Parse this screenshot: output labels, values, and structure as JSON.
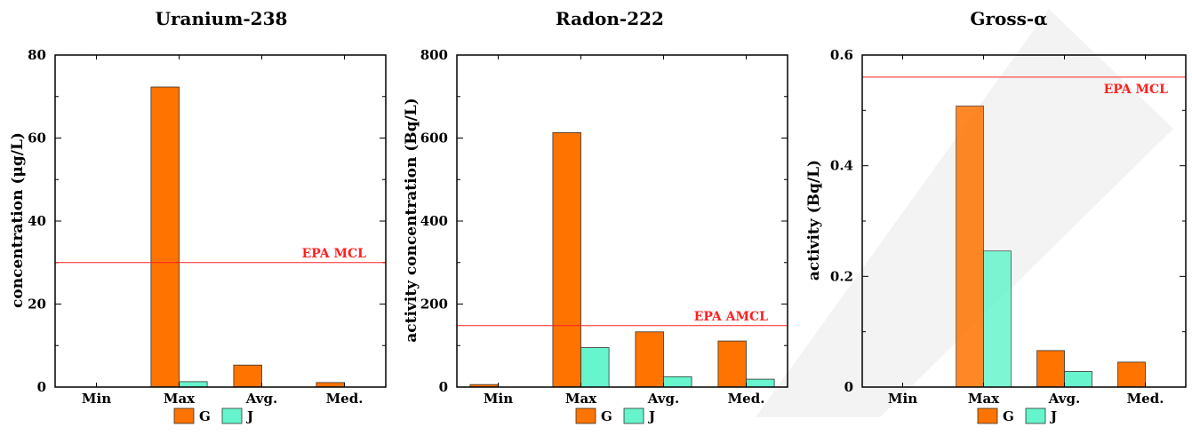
{
  "chart_data": [
    {
      "type": "bar",
      "title": "Uranium-238",
      "ylabel": "concentration (μg/L)",
      "xlabel": "",
      "categories": [
        "Min",
        "Max",
        "Avg.",
        "Med."
      ],
      "series": [
        {
          "name": "G",
          "values": [
            0,
            72.3,
            5.3,
            1.1
          ]
        },
        {
          "name": "J",
          "values": [
            0,
            1.3,
            0,
            0
          ]
        }
      ],
      "ylim": [
        0,
        80
      ],
      "yticks": [
        0,
        20,
        40,
        60,
        80
      ],
      "reference_line": {
        "value": 30,
        "label": "EPA MCL",
        "color": "#ff2020"
      },
      "legend": "bottom-center",
      "grid": false
    },
    {
      "type": "bar",
      "title": "Radon-222",
      "ylabel": "activity concentration (Bq/L)",
      "xlabel": "",
      "categories": [
        "Min",
        "Max",
        "Avg.",
        "Med."
      ],
      "series": [
        {
          "name": "G",
          "values": [
            6,
            613,
            133,
            111
          ]
        },
        {
          "name": "J",
          "values": [
            0,
            95,
            25,
            19
          ]
        }
      ],
      "ylim": [
        0,
        800
      ],
      "yticks": [
        0,
        200,
        400,
        600,
        800
      ],
      "reference_line": {
        "value": 148,
        "label": "EPA AMCL",
        "color": "#ff2020"
      },
      "legend": "bottom-center",
      "grid": false
    },
    {
      "type": "bar",
      "title": "Gross-α",
      "ylabel": "activity (Bq/L)",
      "xlabel": "",
      "categories": [
        "Min",
        "Max",
        "Avg.",
        "Med."
      ],
      "series": [
        {
          "name": "G",
          "values": [
            0,
            0.508,
            0.066,
            0.045
          ]
        },
        {
          "name": "J",
          "values": [
            0,
            0.246,
            0.028,
            0
          ]
        }
      ],
      "ylim": [
        0,
        0.6
      ],
      "yticks": [
        0,
        0.2,
        0.4,
        0.6
      ],
      "yticklabels": [
        "0",
        "0.2",
        "0.4",
        "0.6"
      ],
      "reference_line": {
        "value": 0.56,
        "label": "EPA MCL",
        "color": "#ff2020"
      },
      "legend": "bottom-center",
      "grid": false
    }
  ],
  "colors": {
    "G": "#ff7300",
    "J": "#66f5cc",
    "bar_stroke": "#333333",
    "reference": "#ff2020"
  }
}
